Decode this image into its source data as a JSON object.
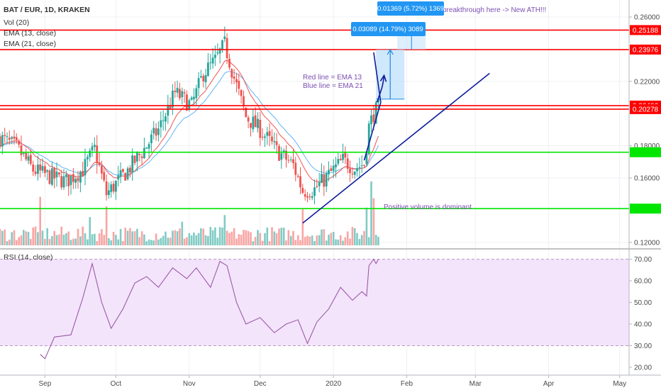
{
  "header": {
    "symbol_line": "BAT / EUR, 1D, KRAKEN",
    "indicators": [
      "Vol (20)",
      "EMA (13, close)",
      "EMA (21, close)"
    ],
    "rsi_label": "RSI (14, close)"
  },
  "colors": {
    "up": "#26a69a",
    "down": "#ef5350",
    "vol_up": "#80cbc4",
    "vol_down": "#f8a5a3",
    "ema13": "#ef5350",
    "ema21": "#64b5f6",
    "red_level": "#ff0000",
    "green_level": "#00e600",
    "trend": "#0d1d9b",
    "rsi_line": "#9c5ba8",
    "rsi_band": "#f3e4fb",
    "measure_fill": "#bbdefb",
    "measure_tag": "#2196f3",
    "note_text": "#7b4fb1"
  },
  "annotations": {
    "ema_note": [
      "Red line = EMA 13",
      "Blue line = EMA 21"
    ],
    "volume_note": "Positive volume is dominant",
    "breakout_note": "breakthrough here -> New ATH!!!",
    "measure_small": "0.01369 (5.72%) 1369",
    "measure_large": "0.03089 (14.79%) 3089"
  },
  "chart_data": [
    {
      "type": "candlestick",
      "title": "BAT / EUR, 1D, KRAKEN",
      "x_axis": {
        "type": "date",
        "range": [
          "2019-08-13",
          "2020-05-05"
        ],
        "ticks": [
          {
            "date": "2019-09-01",
            "label": "Sep"
          },
          {
            "date": "2019-10-01",
            "label": "Oct"
          },
          {
            "date": "2019-11-01",
            "label": "Nov"
          },
          {
            "date": "2019-12-01",
            "label": "Dec"
          },
          {
            "date": "2020-01-01",
            "label": "2020"
          },
          {
            "date": "2020-02-01",
            "label": "Feb"
          },
          {
            "date": "2020-03-01",
            "label": "Mar"
          },
          {
            "date": "2020-04-01",
            "label": "Apr"
          },
          {
            "date": "2020-05-01",
            "label": "May"
          }
        ]
      },
      "y_axis": {
        "ylim": [
          0.1195,
          0.2635
        ],
        "tick_values": [
          0.26,
          0.22,
          0.18,
          0.16,
          0.12
        ],
        "tick_labels": [
          "0.26000",
          "0.22000",
          "0.18000",
          "0.16000",
          "0.12000"
        ]
      },
      "anchor_closes": [
        {
          "date": "2019-08-13",
          "close": 0.185
        },
        {
          "date": "2019-08-20",
          "close": 0.179
        },
        {
          "date": "2019-08-27",
          "close": 0.165
        },
        {
          "date": "2019-09-03",
          "close": 0.161
        },
        {
          "date": "2019-09-10",
          "close": 0.158
        },
        {
          "date": "2019-09-17",
          "close": 0.165
        },
        {
          "date": "2019-09-22",
          "close": 0.178
        },
        {
          "date": "2019-09-27",
          "close": 0.15
        },
        {
          "date": "2019-10-05",
          "close": 0.163
        },
        {
          "date": "2019-10-12",
          "close": 0.176
        },
        {
          "date": "2019-10-19",
          "close": 0.19
        },
        {
          "date": "2019-10-26",
          "close": 0.213
        },
        {
          "date": "2019-11-02",
          "close": 0.205
        },
        {
          "date": "2019-11-07",
          "close": 0.225
        },
        {
          "date": "2019-11-12",
          "close": 0.233
        },
        {
          "date": "2019-11-16",
          "close": 0.243
        },
        {
          "date": "2019-11-20",
          "close": 0.222
        },
        {
          "date": "2019-11-25",
          "close": 0.198
        },
        {
          "date": "2019-12-01",
          "close": 0.19
        },
        {
          "date": "2019-12-08",
          "close": 0.177
        },
        {
          "date": "2019-12-15",
          "close": 0.168
        },
        {
          "date": "2019-12-19",
          "close": 0.152
        },
        {
          "date": "2019-12-24",
          "close": 0.153
        },
        {
          "date": "2019-12-30",
          "close": 0.162
        },
        {
          "date": "2020-01-05",
          "close": 0.171
        },
        {
          "date": "2020-01-10",
          "close": 0.166
        },
        {
          "date": "2020-01-14",
          "close": 0.169
        },
        {
          "date": "2020-01-16",
          "close": 0.192
        },
        {
          "date": "2020-01-18",
          "close": 0.2
        },
        {
          "date": "2020-01-20",
          "close": 0.204
        }
      ],
      "price_levels": [
        {
          "value": 0.25188,
          "label": "0.25188",
          "color": "#ff0000"
        },
        {
          "value": 0.23976,
          "label": "0.23976",
          "color": "#ff0000"
        },
        {
          "value": 0.20496,
          "label": "0.20496",
          "color": "#ff0000"
        },
        {
          "value": 0.20278,
          "label": "0.20278",
          "color": "#ff0000"
        },
        {
          "value": 0.176,
          "label": "",
          "color": "#00e600"
        },
        {
          "value": 0.141,
          "label": "",
          "color": "#00e600"
        }
      ],
      "trendlines": [
        {
          "from": [
            "2019-12-19",
            0.132
          ],
          "to": [
            "2020-03-07",
            0.225
          ]
        },
        {
          "from": [
            "2020-01-14",
            0.171
          ],
          "to": [
            "2020-01-21",
            0.207
          ]
        },
        {
          "from": [
            "2020-01-18",
            0.238
          ],
          "to": [
            "2020-01-21",
            0.207
          ]
        }
      ],
      "volume": {
        "label": "Vol (20)",
        "max_value": 1.0,
        "spikes": [
          {
            "date": "2019-08-30",
            "value": 0.72
          },
          {
            "date": "2019-09-20",
            "value": 0.42
          },
          {
            "date": "2019-09-27",
            "value": 0.58
          },
          {
            "date": "2019-10-29",
            "value": 0.35
          },
          {
            "date": "2019-11-16",
            "value": 0.45
          },
          {
            "date": "2019-12-19",
            "value": 0.55
          },
          {
            "date": "2020-01-15",
            "value": 0.56
          },
          {
            "date": "2020-01-17",
            "value": 0.95
          },
          {
            "date": "2020-01-18",
            "value": 0.7
          }
        ]
      }
    },
    {
      "type": "line",
      "title": "RSI (14, close)",
      "series": [
        {
          "points": [
            [
              "2019-08-30",
              26
            ],
            [
              "2019-09-01",
              24
            ],
            [
              "2019-09-05",
              34
            ],
            [
              "2019-09-12",
              35
            ],
            [
              "2019-09-17",
              52
            ],
            [
              "2019-09-21",
              68
            ],
            [
              "2019-09-25",
              50
            ],
            [
              "2019-09-29",
              38
            ],
            [
              "2019-10-04",
              47
            ],
            [
              "2019-10-09",
              59
            ],
            [
              "2019-10-14",
              62
            ],
            [
              "2019-10-19",
              57
            ],
            [
              "2019-10-25",
              66
            ],
            [
              "2019-10-31",
              61
            ],
            [
              "2019-11-04",
              66
            ],
            [
              "2019-11-10",
              57
            ],
            [
              "2019-11-14",
              69
            ],
            [
              "2019-11-17",
              67
            ],
            [
              "2019-11-21",
              50
            ],
            [
              "2019-11-25",
              40
            ],
            [
              "2019-12-01",
              43
            ],
            [
              "2019-12-07",
              36
            ],
            [
              "2019-12-12",
              40
            ],
            [
              "2019-12-17",
              42
            ],
            [
              "2019-12-21",
              31
            ],
            [
              "2019-12-25",
              41
            ],
            [
              "2019-12-30",
              47
            ],
            [
              "2020-01-04",
              57
            ],
            [
              "2020-01-09",
              51
            ],
            [
              "2020-01-13",
              55
            ],
            [
              "2020-01-15",
              53
            ],
            [
              "2020-01-16",
              67
            ],
            [
              "2020-01-18",
              70
            ],
            [
              "2020-01-19",
              68
            ],
            [
              "2020-01-20",
              70
            ]
          ]
        }
      ],
      "ylim": [
        19,
        71.5
      ],
      "tick_values": [
        70,
        60,
        50,
        40,
        30,
        20
      ],
      "tick_labels": [
        "70.00",
        "60.00",
        "50.00",
        "40.00",
        "30.00",
        "20.00"
      ],
      "band": [
        30,
        70
      ]
    }
  ]
}
